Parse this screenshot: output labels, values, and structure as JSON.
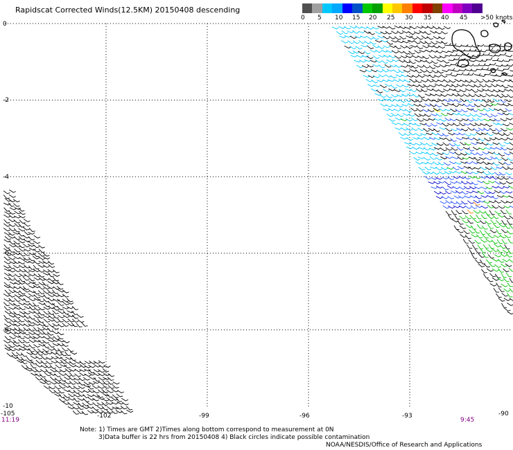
{
  "title": "Rapidscat Corrected Winds(12.5KM) 20150408 descending",
  "colorbar": {
    "colors": [
      "#505050",
      "#a0a0a0",
      "#00c8ff",
      "#00a8ff",
      "#0000ff",
      "#0050c8",
      "#00c800",
      "#00a000",
      "#ffff00",
      "#ffc800",
      "#ff8000",
      "#ff0000",
      "#c00000",
      "#804000",
      "#ff00ff",
      "#c000c0",
      "#8000c0",
      "#500090"
    ],
    "labels": [
      "0",
      "5",
      "10",
      "15",
      "20",
      "25",
      "30",
      "35",
      "40",
      "45",
      ">50 knots"
    ]
  },
  "map": {
    "lon_range": [
      -105,
      -90
    ],
    "lat_range": [
      -10,
      0
    ],
    "lon_ticks": [
      "-105",
      "-102",
      "-99",
      "-96",
      "-93",
      "-90"
    ],
    "lat_ticks": [
      "0",
      "-2",
      "-4",
      "-6",
      "-8",
      "-10"
    ],
    "time_left": "11:19",
    "time_right": "9:45",
    "barb_colors": {
      "black": "#000000",
      "cyan": "#00c8ff",
      "blue": "#1e50ff",
      "navy": "#0000c8",
      "green": "#00c000",
      "yellow": "#e8e800",
      "orange": "#ff8000"
    }
  },
  "notes": {
    "line1": "Note: 1) Times are GMT 2)Times along bottom correspond to measurement at 0N",
    "line2": "3)Data buffer is 22 hrs from 20150408 4) Black circles indicate possible contamination"
  },
  "credit": "NOAA/NESDIS/Office of Research and Applications"
}
